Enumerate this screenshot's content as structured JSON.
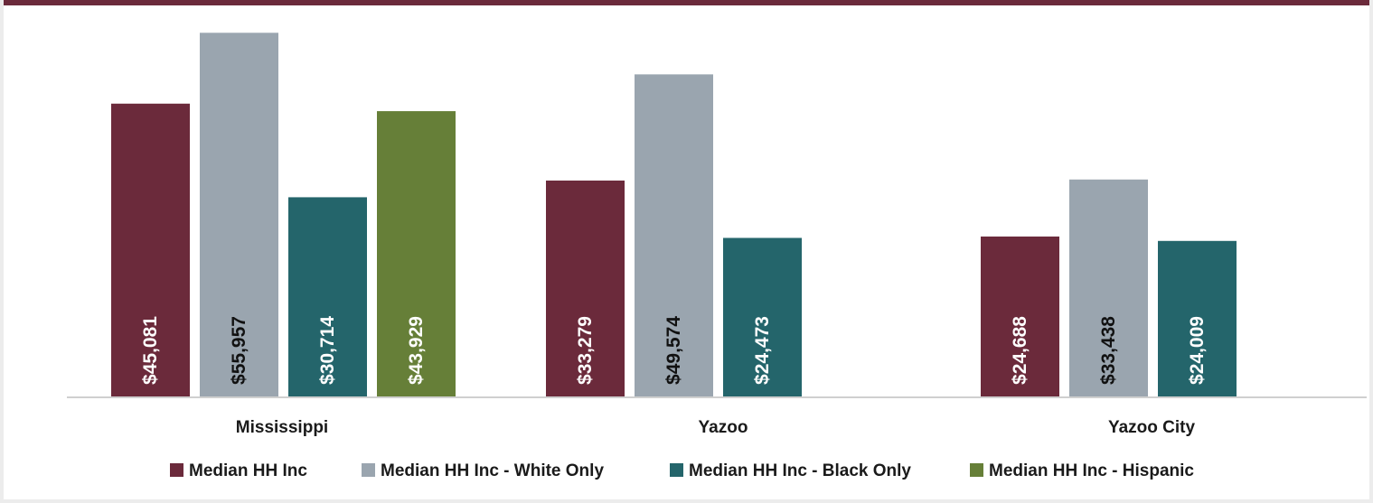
{
  "chart_data": {
    "type": "bar",
    "title": "",
    "xlabel": "",
    "ylabel": "",
    "ylim": [
      0,
      56000
    ],
    "grid": false,
    "legend_position": "bottom",
    "categories": [
      "Mississippi",
      "Yazoo",
      "Yazoo City"
    ],
    "series": [
      {
        "name": "Median HH Inc",
        "color": "#6b2a3b",
        "label_color": "#ffffff",
        "values": [
          45081,
          33279,
          24688
        ],
        "labels": [
          "$45,081",
          "$33,279",
          "$24,688"
        ]
      },
      {
        "name": "Median HH Inc - White Only",
        "color": "#9aa5af",
        "label_color": "#111111",
        "values": [
          55957,
          49574,
          33438
        ],
        "labels": [
          "$55,957",
          "$49,574",
          "$33,438"
        ]
      },
      {
        "name": "Median HH Inc - Black Only",
        "color": "#24656b",
        "label_color": "#ffffff",
        "values": [
          30714,
          24473,
          24009
        ],
        "labels": [
          "$30,714",
          "$24,473",
          "$24,009"
        ]
      },
      {
        "name": "Median HH Inc - Hispanic",
        "color": "#667f38",
        "label_color": "#ffffff",
        "values": [
          43929,
          null,
          null
        ],
        "labels": [
          "$43,929",
          "",
          ""
        ]
      }
    ]
  }
}
